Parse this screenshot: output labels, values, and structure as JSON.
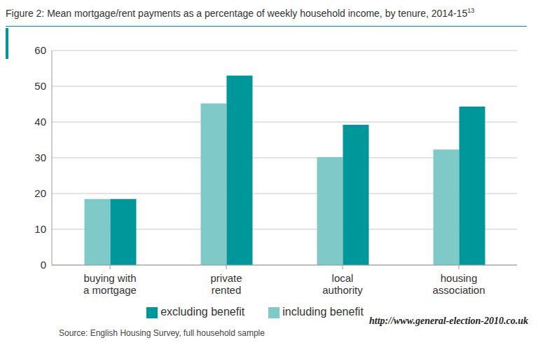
{
  "chart_data": {
    "type": "bar",
    "title": "Figure 2: Mean mortgage/rent payments as a percentage of weekly household income, by tenure, 2014-15",
    "title_superscript": "13",
    "categories": [
      "buying with a mortgage",
      "private rented",
      "local authority",
      "housing association"
    ],
    "series": [
      {
        "name": "including benefit",
        "color": "#80c9c9",
        "values": [
          18.5,
          45.2,
          30.2,
          32.3
        ]
      },
      {
        "name": "excluding benefit",
        "color": "#00979a",
        "values": [
          18.5,
          53,
          39.2,
          44.3
        ]
      }
    ],
    "ylim": [
      0,
      60
    ],
    "yticks": [
      0,
      10,
      20,
      30,
      40,
      50,
      60
    ],
    "grid": true,
    "legend": "bottom",
    "source": "Source: English Housing Survey, full household sample",
    "watermark": "http://www.general-election-2010.co.uk"
  }
}
